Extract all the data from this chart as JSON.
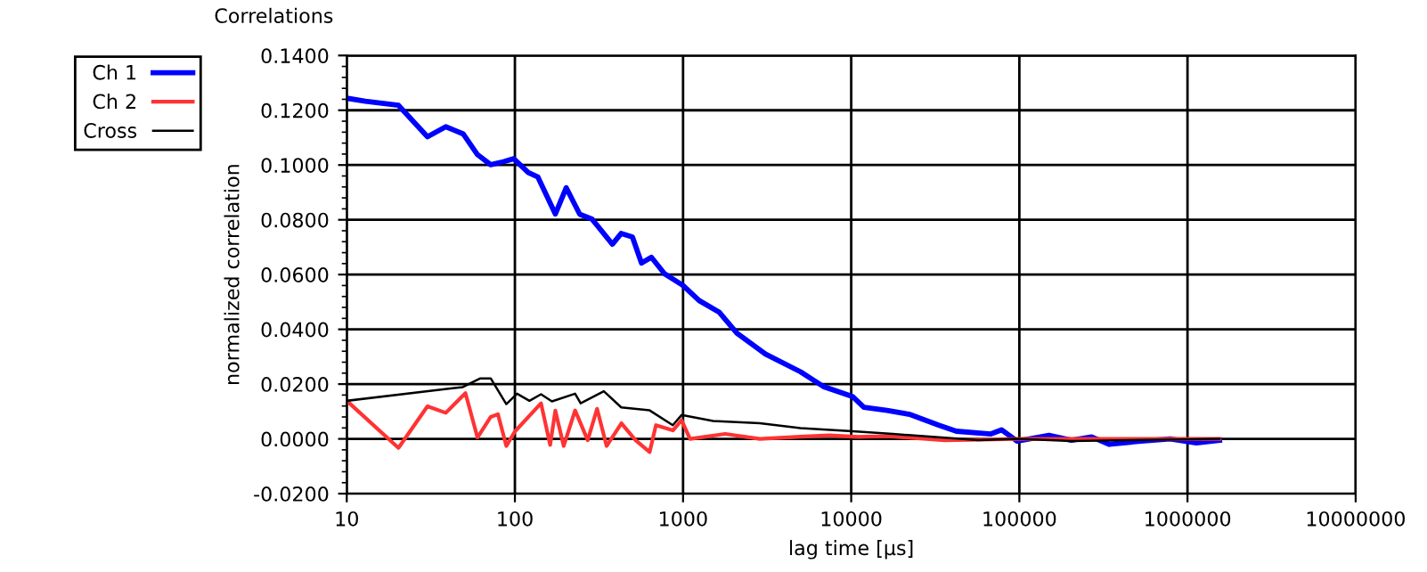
{
  "chart_data": {
    "type": "line",
    "title": "Correlations",
    "xlabel": "lag time [µs]",
    "ylabel": "normalized correlation",
    "log": "x",
    "grid": true,
    "legend": "top left",
    "marker": "none",
    "line_style": "solid",
    "xlim": [
      10,
      10000000
    ],
    "xticks": [
      10,
      100,
      1000,
      10000,
      100000,
      1000000,
      10000000
    ],
    "ylim": [
      -0.02,
      0.14
    ],
    "yticks": [
      {
        "value": -0.02,
        "label": "-0.0200"
      },
      {
        "value": 0,
        "label": "0.0000"
      },
      {
        "value": 0.02,
        "label": "0.0200"
      },
      {
        "value": 0.04,
        "label": "0.0400"
      },
      {
        "value": 0.06,
        "label": "0.0600"
      },
      {
        "value": 0.08,
        "label": "0.0800"
      },
      {
        "value": 0.1,
        "label": "0.1000"
      },
      {
        "value": 0.12,
        "label": "0.1200"
      },
      {
        "value": 0.14,
        "label": "0.1400"
      }
    ],
    "series": [
      {
        "name": "Ch 1",
        "color": "#0000ff",
        "x": [
          10,
          12.9,
          20.3,
          30.2,
          38.8,
          49.2,
          59.9,
          71.8,
          85.5,
          98.4,
          120,
          137,
          174,
          202,
          243,
          288,
          380,
          428,
          500,
          566,
          648,
          776,
          1006,
          1247,
          1644,
          2089,
          3090,
          4990,
          6840,
          10160,
          11900,
          16330,
          22400,
          33200,
          42200,
          67800,
          78300,
          97000,
          150000,
          204000,
          269000,
          343000,
          531000,
          789000,
          1130000,
          1550000
        ],
        "values": [
          0.1244,
          0.1233,
          0.1218,
          0.1103,
          0.114,
          0.1114,
          0.1038,
          0.1001,
          0.1012,
          0.1023,
          0.0973,
          0.0956,
          0.0821,
          0.0917,
          0.082,
          0.0802,
          0.0711,
          0.075,
          0.0737,
          0.0642,
          0.0663,
          0.0603,
          0.0559,
          0.0505,
          0.0462,
          0.0386,
          0.031,
          0.0245,
          0.0191,
          0.0155,
          0.0115,
          0.0104,
          0.0089,
          0.005,
          0.0028,
          0.0018,
          0.0033,
          -0.0008,
          0.0013,
          -0.0005,
          0.0007,
          -0.002,
          -0.0008,
          0.0,
          -0.0015,
          -0.0005
        ]
      },
      {
        "name": "Ch 2",
        "color": "#ff3333",
        "x": [
          10,
          20.3,
          30.2,
          38.8,
          50.8,
          59.9,
          71.8,
          79.3,
          88.9,
          100,
          143,
          162,
          174,
          195,
          228,
          271,
          308,
          351,
          430,
          522,
          633,
          690,
          870,
          980,
          1100,
          1780,
          2860,
          4990,
          7400,
          11000,
          16330,
          36000,
          97000,
          300000,
          1550000
        ],
        "values": [
          0.0139,
          -0.0033,
          0.0119,
          0.0095,
          0.0167,
          0.0005,
          0.008,
          0.009,
          -0.0026,
          0.0027,
          0.013,
          -0.0022,
          0.0103,
          -0.0026,
          0.0104,
          -0.0005,
          0.011,
          -0.0026,
          0.0057,
          -0.0005,
          -0.0048,
          0.005,
          0.0031,
          0.0068,
          0.0,
          0.0018,
          0.0,
          0.0008,
          0.0013,
          0.0007,
          0.001,
          -0.0005,
          0.0,
          0.0,
          0.0
        ]
      },
      {
        "name": "Cross",
        "color": "#000000",
        "x": [
          10,
          49,
          62.3,
          71.8,
          88.9,
          103,
          122,
          143,
          166,
          228,
          246,
          338,
          429,
          633,
          869,
          980,
          1510,
          2860,
          4990,
          10160,
          17660,
          57000,
          97000,
          204000,
          1550000
        ],
        "values": [
          0.0139,
          0.0189,
          0.0221,
          0.0221,
          0.0127,
          0.0165,
          0.0139,
          0.0163,
          0.0137,
          0.0165,
          0.013,
          0.0174,
          0.0115,
          0.0104,
          0.005,
          0.0087,
          0.0065,
          0.0057,
          0.0039,
          0.0028,
          0.0018,
          -0.0005,
          0.0,
          -0.0008,
          0.0
        ]
      }
    ]
  }
}
